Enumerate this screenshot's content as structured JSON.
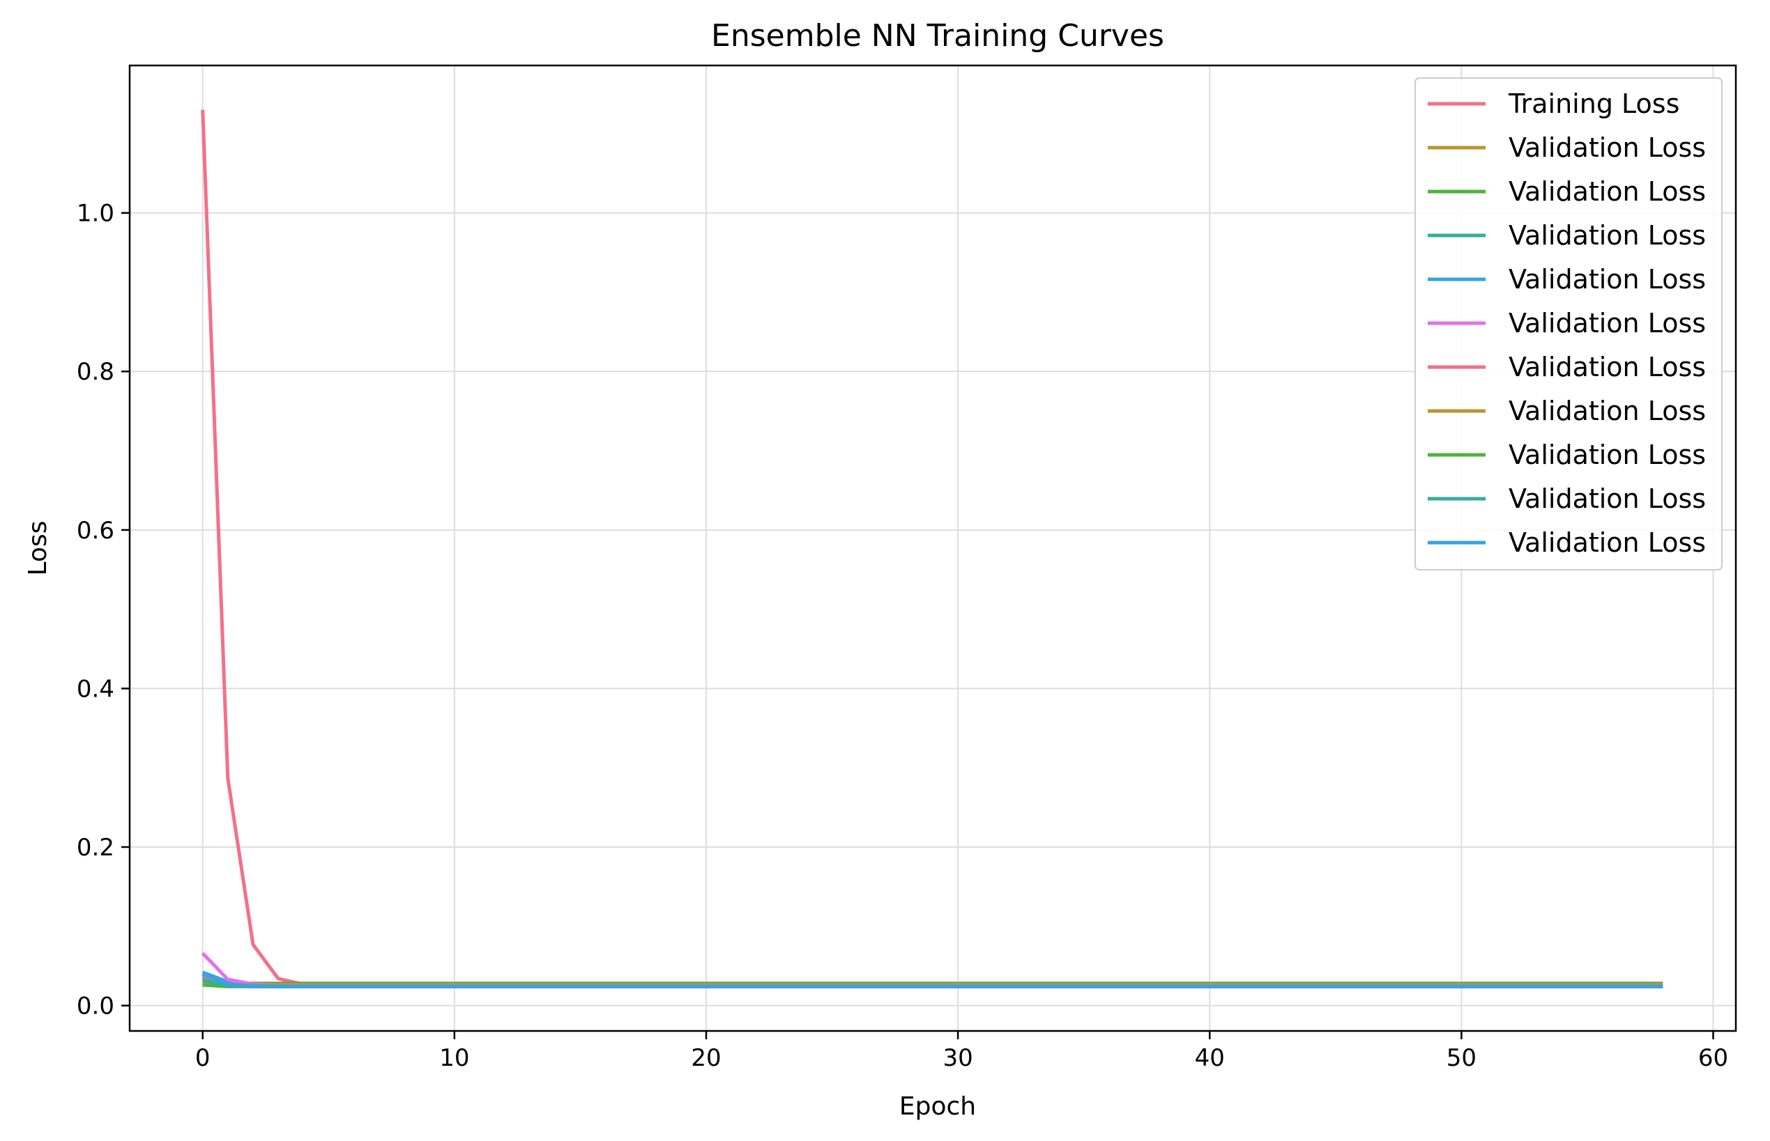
{
  "chart_data": {
    "type": "line",
    "title": "Ensemble NN Training Curves",
    "xlabel": "Epoch",
    "ylabel": "Loss",
    "xlim": [
      -2.9,
      60.9
    ],
    "ylim": [
      -0.032,
      1.186
    ],
    "xticks": [
      0,
      10,
      20,
      30,
      40,
      50,
      60
    ],
    "xtick_labels": [
      "0",
      "10",
      "20",
      "30",
      "40",
      "50",
      "60"
    ],
    "yticks": [
      0.0,
      0.2,
      0.4,
      0.6,
      0.8,
      1.0
    ],
    "ytick_labels": [
      "0.0",
      "0.2",
      "0.4",
      "0.6",
      "0.8",
      "1.0"
    ],
    "grid": true,
    "legend_position": "top-right",
    "x_epochs": {
      "start": 0,
      "end": 58
    },
    "series": [
      {
        "name": "Training Loss",
        "color": "#f37088",
        "head": [
          1.13,
          0.287,
          0.077,
          0.034
        ],
        "plateau": 0.027
      },
      {
        "name": "Validation Loss",
        "color": "#bb9532",
        "head": [
          0.03,
          0.026
        ],
        "plateau": 0.026
      },
      {
        "name": "Validation Loss",
        "color": "#4eb33b",
        "head": [
          0.03,
          0.028
        ],
        "plateau": 0.028
      },
      {
        "name": "Validation Loss",
        "color": "#35ad9f",
        "head": [
          0.036,
          0.027
        ],
        "plateau": 0.025
      },
      {
        "name": "Validation Loss",
        "color": "#38a2e4",
        "head": [
          0.042,
          0.03,
          0.025
        ],
        "plateau": 0.025
      },
      {
        "name": "Validation Loss",
        "color": "#e56ef0",
        "head": [
          0.066,
          0.033,
          0.027
        ],
        "plateau": 0.026
      },
      {
        "name": "Validation Loss",
        "color": "#f37088",
        "head": [
          0.038,
          0.027
        ],
        "plateau": 0.026
      },
      {
        "name": "Validation Loss",
        "color": "#bb9532",
        "head": [
          0.028,
          0.025
        ],
        "plateau": 0.025
      },
      {
        "name": "Validation Loss",
        "color": "#4eb33b",
        "head": [
          0.026,
          0.024
        ],
        "plateau": 0.024
      },
      {
        "name": "Validation Loss",
        "color": "#35ad9f",
        "head": [
          0.032,
          0.025
        ],
        "plateau": 0.024
      },
      {
        "name": "Validation Loss",
        "color": "#38a2e4",
        "head": [
          0.04,
          0.027,
          0.025
        ],
        "plateau": 0.024
      }
    ]
  }
}
